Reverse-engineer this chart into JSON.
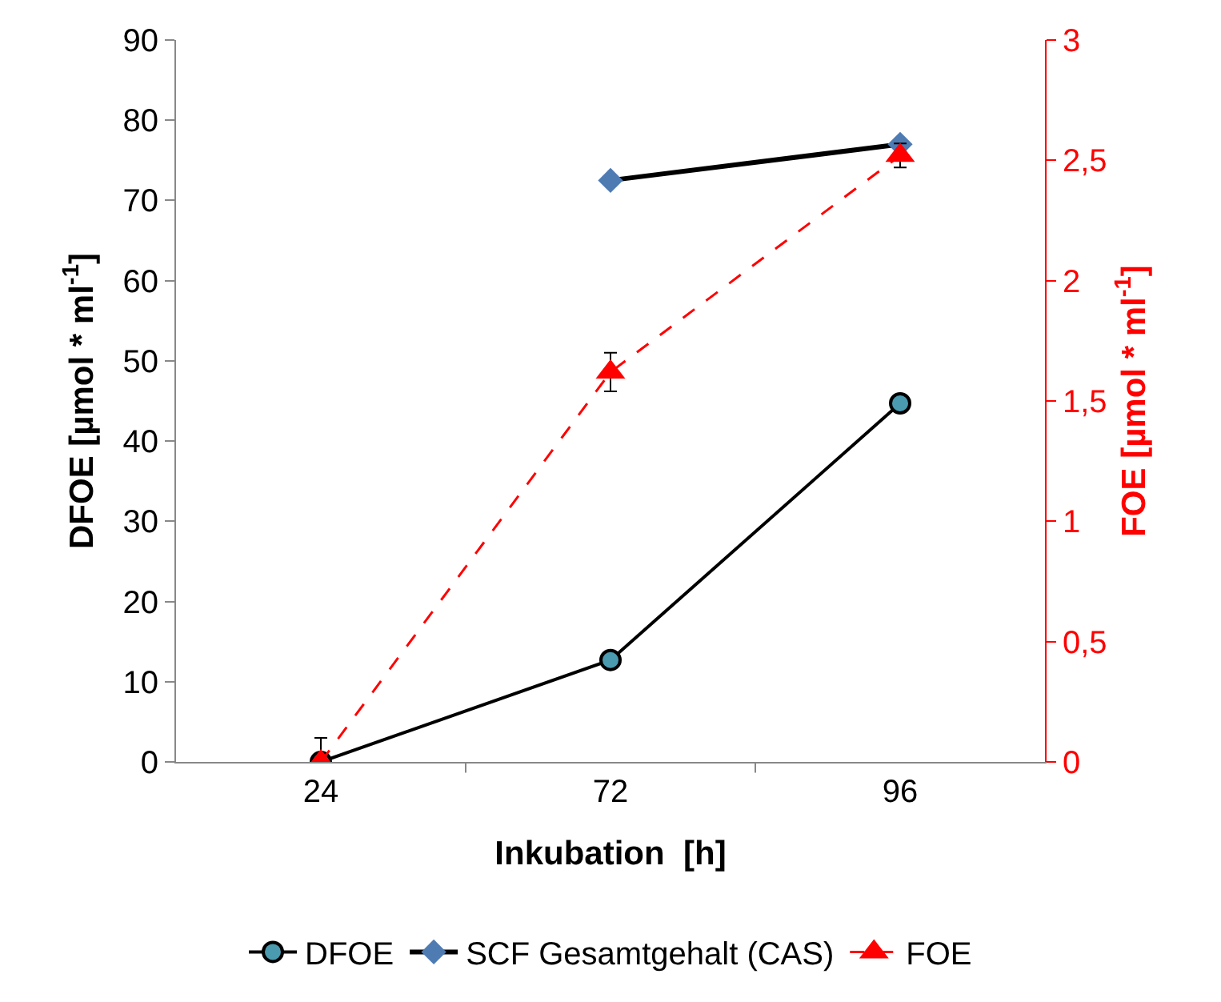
{
  "chart_data": {
    "type": "line",
    "xlabel": "Inkubation  [h]",
    "ylabel": "DFOE [µmol * ml$^{-1}$]",
    "y2label": "FOE [µmol * ml$^{-1}$]",
    "categories": [
      "24",
      "72",
      "96"
    ],
    "ylim": [
      0,
      90
    ],
    "yticks": [
      0,
      10,
      20,
      30,
      40,
      50,
      60,
      70,
      80,
      90
    ],
    "y2lim": [
      0,
      3
    ],
    "y2ticks": [
      0,
      {
        "value": 0.5,
        "label": "0,5"
      },
      1,
      {
        "value": 1.5,
        "label": "1,5"
      },
      2,
      {
        "value": 2.5,
        "label": "2,5"
      },
      3
    ],
    "grid": false,
    "legend": "bottom",
    "series": [
      {
        "name": "DFOE",
        "color": "#000000",
        "colors": [
          "#4a9bb0",
          "#4a9bb0",
          "#4a9bb0"
        ],
        "values": [
          0,
          12.7,
          44.7
        ],
        "marker": "circle",
        "line_style": "solid"
      },
      {
        "name": "SCF Gesamtgehalt (CAS)",
        "color": "#000000",
        "colors": [
          "#4f7bb3",
          "#4f7bb3",
          "#4f7bb3"
        ],
        "values": [
          null,
          72.5,
          77
        ],
        "marker": "diamond",
        "line_style": "solid"
      },
      {
        "name": "FOE",
        "color": "#ff0000",
        "values": [
          0,
          1.62,
          2.52
        ],
        "errors": [
          0.1,
          0.08,
          0.05
        ],
        "axis": "y2",
        "marker": "triangle",
        "line_style": "dashed"
      }
    ]
  }
}
